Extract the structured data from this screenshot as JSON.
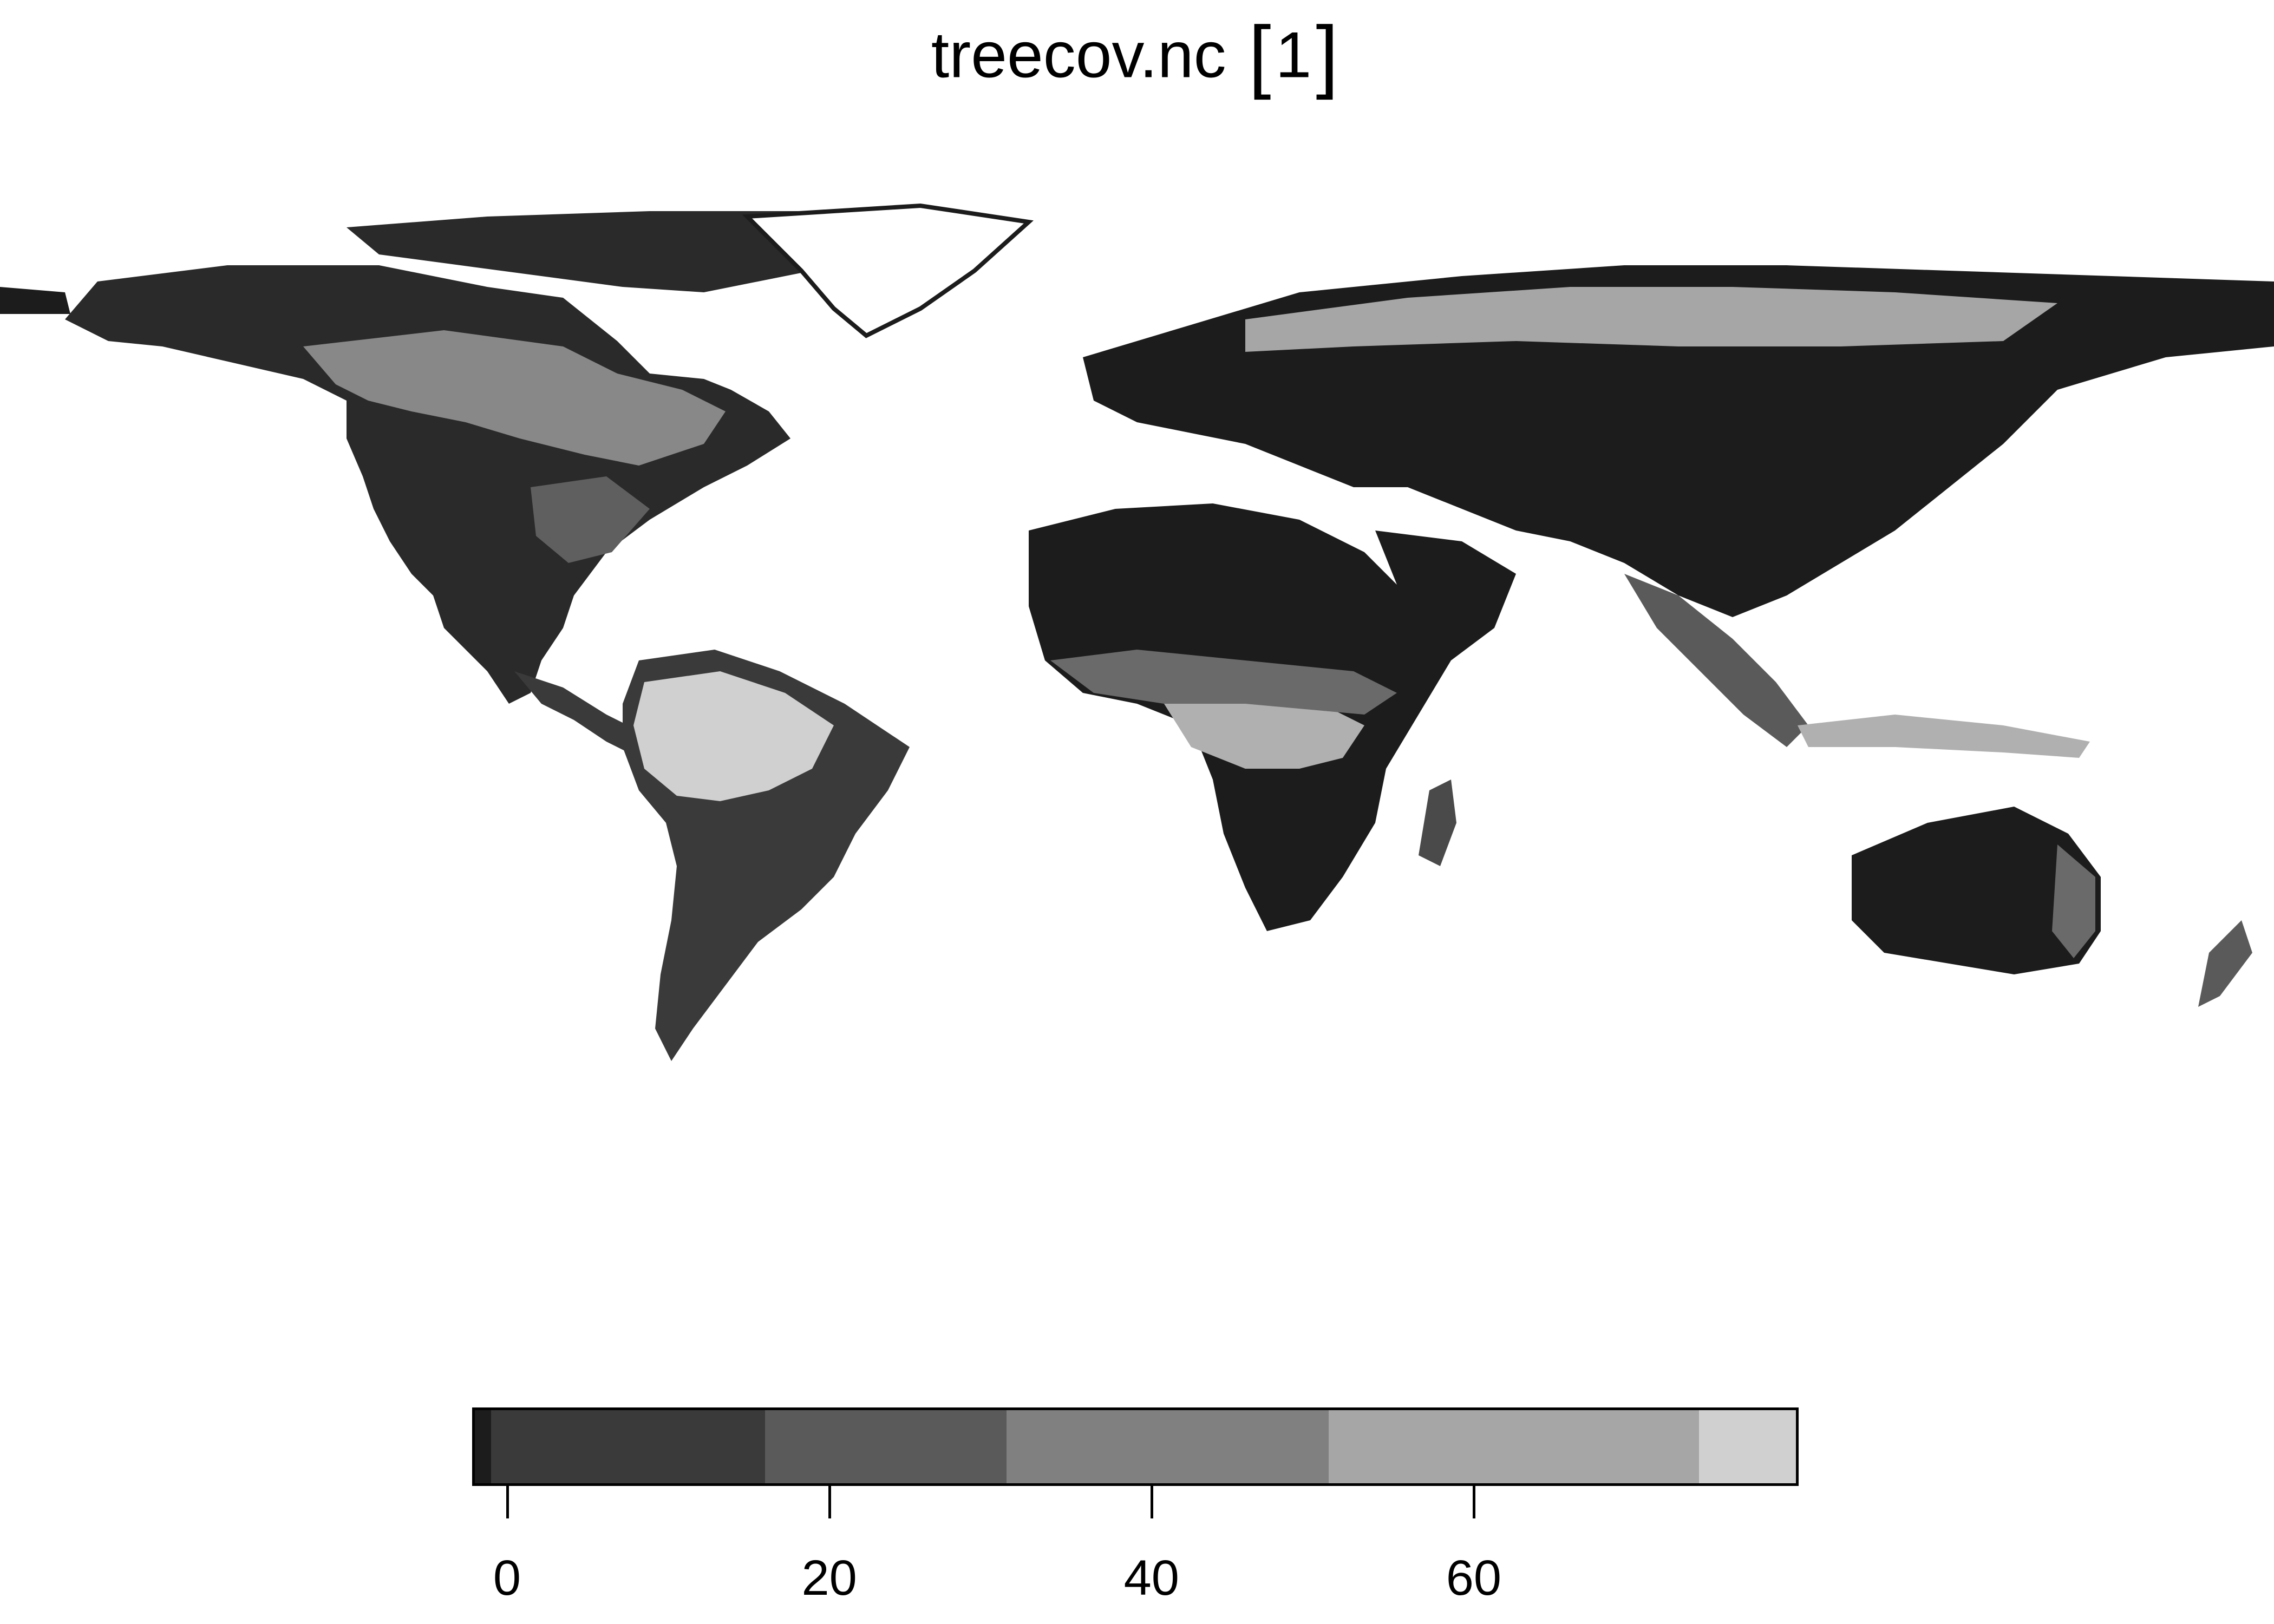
{
  "plot": {
    "title": "treecov.nc",
    "title_index": "1"
  },
  "map": {
    "type": "raster",
    "region": "world",
    "land_colors": [
      "#1c1c1c",
      "#3a3a3a",
      "#5a5a5a",
      "#808080",
      "#a6a6a6",
      "#d0d0d0"
    ],
    "background": "#ffffff"
  },
  "legend": {
    "range": [
      -2,
      80
    ],
    "breaks": [
      -2,
      -1,
      16,
      31,
      51,
      74,
      80
    ],
    "colors": [
      "#1c1c1c",
      "#3a3a3a",
      "#5a5a5a",
      "#808080",
      "#a6a6a6",
      "#d0d0d0"
    ],
    "ticks": [
      {
        "value": 0,
        "label": "0"
      },
      {
        "value": 20,
        "label": "20"
      },
      {
        "value": 40,
        "label": "40"
      },
      {
        "value": 60,
        "label": "60"
      }
    ]
  }
}
